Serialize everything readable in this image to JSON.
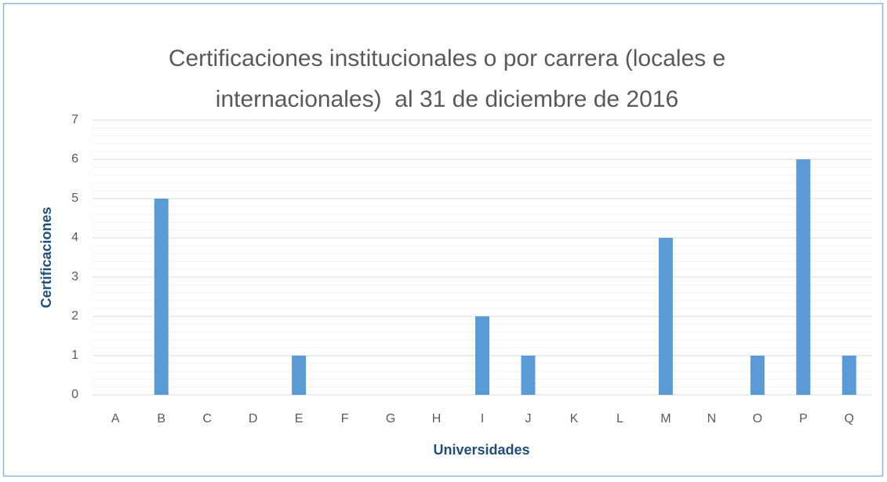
{
  "chart_data": {
    "type": "bar",
    "title": [
      "Certificaciones institucionales o por carrera (locales e",
      "internacionales)  al 31 de diciembre de 2016"
    ],
    "x_label": "Universidades",
    "y_label": "Certificaciones",
    "categories": [
      "A",
      "B",
      "C",
      "D",
      "E",
      "F",
      "G",
      "H",
      "I",
      "J",
      "K",
      "L",
      "M",
      "N",
      "O",
      "P",
      "Q"
    ],
    "values": [
      0,
      5,
      0,
      0,
      1,
      0,
      0,
      0,
      2,
      1,
      0,
      0,
      4,
      0,
      1,
      6,
      1
    ],
    "color": "#5b9bd5",
    "ylim": [
      0,
      7
    ],
    "yticks": [
      0,
      1,
      2,
      3,
      4,
      5,
      6,
      7
    ],
    "grid": true
  }
}
